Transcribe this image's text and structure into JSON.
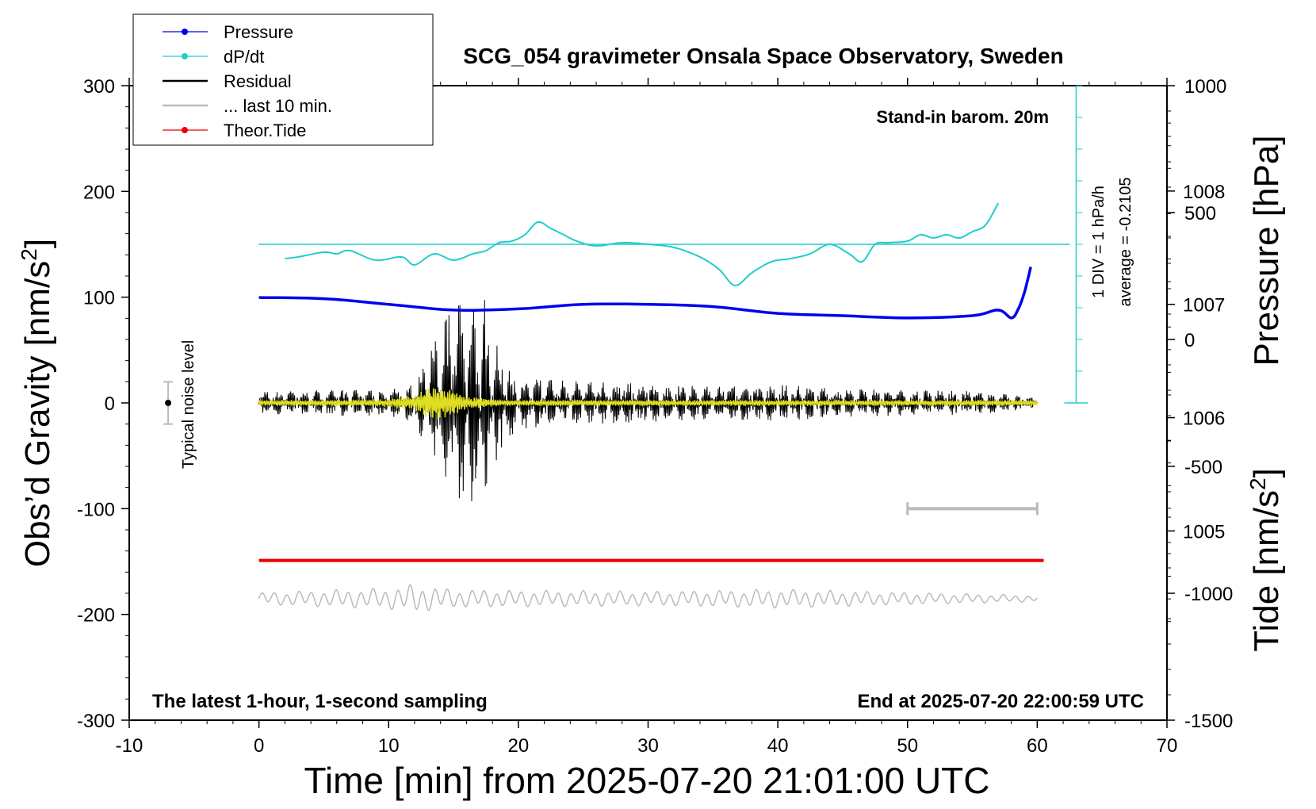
{
  "chart_data": {
    "type": "line",
    "title": "SCG_054 gravimeter Onsala Space Observatory, Sweden",
    "xlabel": "Time [min] from 2025-07-20 21:01:00 UTC",
    "ylabel": "Obs’d Gravity [nm/s",
    "ylabel_sup": "2",
    "ylabel_tail": "]",
    "y2label": "Pressure [hPa]",
    "y3label": "Tide [nm/s",
    "y3label_sup": "2",
    "y3label_tail": "]",
    "xlim": [
      -10,
      70
    ],
    "ylim": [
      -300,
      300
    ],
    "x_ticks": [
      -10,
      0,
      10,
      20,
      30,
      40,
      50,
      60,
      70
    ],
    "y_ticks": [
      -300,
      -200,
      -100,
      0,
      100,
      200,
      300
    ],
    "pressure_axis": {
      "ticks": [
        1005,
        1006,
        1007,
        1008
      ],
      "range": [
        1003.33,
        1008.93
      ]
    },
    "tide_axis": {
      "ticks": [
        -1500,
        -1000,
        -500,
        0,
        500,
        1000
      ],
      "range": [
        -1500,
        1000
      ]
    },
    "legend": {
      "placement": "top-left",
      "entries": [
        {
          "label": "Pressure",
          "color": "#0000ee",
          "marker": "dot"
        },
        {
          "label": "dP/dt",
          "color": "#22cccc",
          "marker": "dot"
        },
        {
          "label": "Residual",
          "color": "#000000",
          "marker": "none"
        },
        {
          "label": "... last 10 min.",
          "color": "#bbbbbb",
          "marker": "none"
        },
        {
          "label": "Theor.Tide",
          "color": "#ee0000",
          "marker": "dot"
        }
      ]
    },
    "annotations": {
      "barometer": "Stand-in barom. 20m",
      "div_label": "1 DIV = 1 hPa/h",
      "average_label": "average = -0.2105",
      "noise_label": "Typical noise level",
      "bottom_left": "The latest 1-hour, 1-second sampling",
      "bottom_right": "End at 2025-07-20 22:00:59 UTC"
    },
    "noise_marker": {
      "x": -7,
      "y": 0,
      "range": [
        -20,
        20
      ]
    },
    "last10_bar": {
      "x": [
        50,
        60
      ],
      "y": -100
    },
    "dpdt_baseline_y": 150,
    "series": [
      {
        "name": "Pressure",
        "color": "#0000ee",
        "x": [
          0,
          5,
          10,
          15,
          20,
          25,
          30,
          35,
          40,
          45,
          50,
          55,
          57,
          58,
          58.5,
          59,
          59.5
        ],
        "values": [
          1007.06,
          1007.05,
          1007.0,
          1006.95,
          1006.96,
          1007.0,
          1007.0,
          1006.98,
          1006.92,
          1006.9,
          1006.88,
          1006.9,
          1006.95,
          1006.88,
          1006.95,
          1007.1,
          1007.33
        ]
      },
      {
        "name": "dP/dt",
        "color": "#22cccc",
        "x": [
          2,
          3,
          5,
          6,
          7,
          9,
          11,
          12,
          13.5,
          15,
          16.5,
          17.5,
          18.5,
          19.5,
          20.5,
          21.5,
          22.5,
          23.5,
          24.5,
          26,
          28,
          30,
          32,
          34,
          35.5,
          36.7,
          38,
          39.5,
          41,
          42.5,
          44,
          45.5,
          46.5,
          47.5,
          48.5,
          50,
          51,
          52,
          53,
          54,
          55,
          56,
          57
        ],
        "values": [
          -0.45,
          -0.4,
          -0.25,
          -0.3,
          -0.2,
          -0.5,
          -0.4,
          -0.65,
          -0.3,
          -0.5,
          -0.3,
          -0.2,
          0.05,
          0.1,
          0.3,
          0.7,
          0.5,
          0.3,
          0.1,
          -0.05,
          0.05,
          0.0,
          -0.1,
          -0.4,
          -0.8,
          -1.3,
          -0.9,
          -0.55,
          -0.45,
          -0.3,
          0.0,
          -0.3,
          -0.55,
          0.0,
          0.05,
          0.1,
          0.3,
          0.2,
          0.3,
          0.2,
          0.4,
          0.6,
          1.3
        ]
      },
      {
        "name": "Residual",
        "color": "#000000",
        "x_range": [
          0,
          60
        ],
        "envelope_x": [
          0,
          5,
          10,
          12,
          13,
          14,
          15,
          16,
          17,
          18,
          19,
          20,
          22,
          25,
          30,
          35,
          40,
          45,
          50,
          55,
          60
        ],
        "envelope": [
          10,
          12,
          12,
          18,
          45,
          70,
          90,
          95,
          90,
          65,
          35,
          25,
          22,
          20,
          18,
          15,
          17,
          13,
          12,
          11,
          5
        ],
        "seismic_bursts": [
          {
            "x": 15.9,
            "peak": 100
          },
          {
            "x": 17.4,
            "peak": 100
          }
        ]
      },
      {
        "name": "Residual (filtered)",
        "color": "#dddd22",
        "x_range": [
          0,
          60
        ],
        "envelope": [
          3,
          3,
          4,
          8,
          15,
          18,
          12,
          6,
          5,
          4,
          3,
          3,
          3,
          3,
          3,
          3,
          3,
          3,
          3,
          3,
          3
        ]
      },
      {
        "name": "... last 10 min.",
        "color": "#bbbbbb",
        "x_range": [
          0,
          60
        ],
        "baseline": -185,
        "envelope_x": [
          0,
          5,
          10,
          12,
          13,
          15,
          20,
          30,
          40,
          50,
          60
        ],
        "envelope": [
          6,
          8,
          10,
          14,
          12,
          9,
          8,
          7,
          9,
          6,
          3
        ]
      },
      {
        "name": "Theor.Tide",
        "color": "#ee0000",
        "x": [
          0,
          60.5
        ],
        "values": [
          -149,
          -149
        ]
      }
    ]
  }
}
